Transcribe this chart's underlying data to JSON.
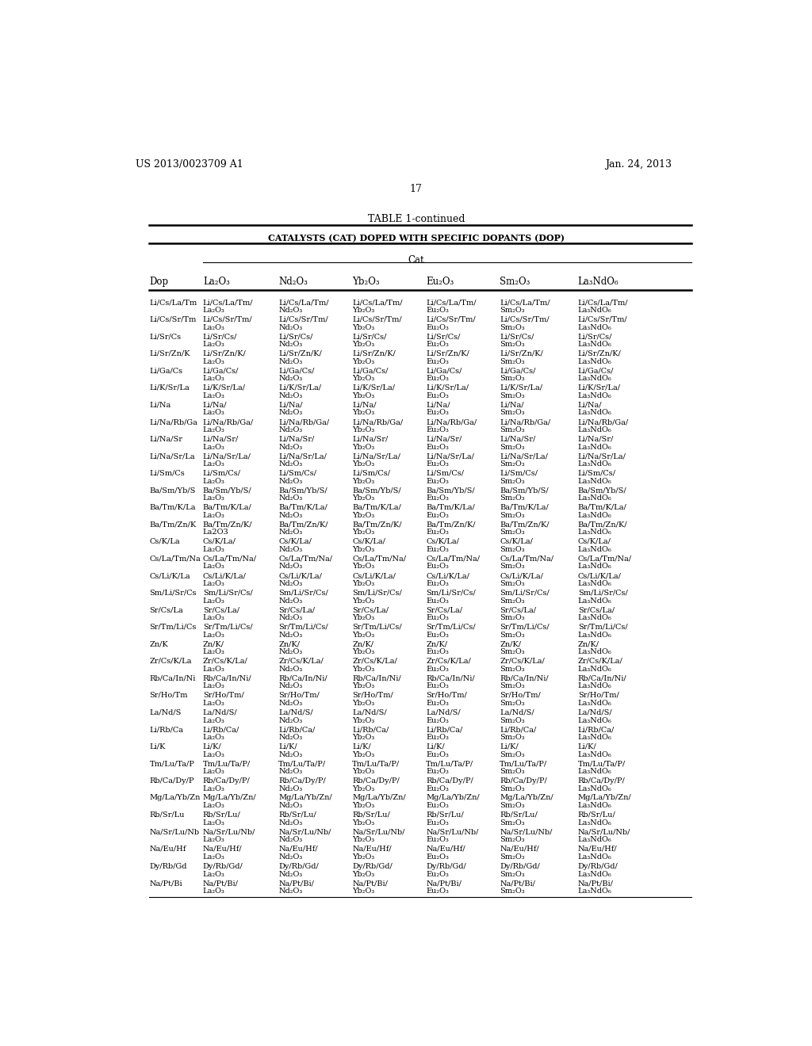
{
  "page_number": "17",
  "patent_number": "US 2013/0023709 A1",
  "patent_date": "Jan. 24, 2013",
  "table_title": "TABLE 1-continued",
  "table_subtitle": "CATALYSTS (CAT) DOPED WITH SPECIFIC DOPANTS (DOP)",
  "col_header_cat": "Cat",
  "col_headers_display": [
    "La₂O₃",
    "Nd₂O₃",
    "Yb₂O₃",
    "Eu₂O₃",
    "Sm₂O₃",
    "La₃NdO₆"
  ],
  "rows": [
    [
      "Li/Cs/La/Tm",
      "Li/Cs/La/Tm/",
      "La₂O₃",
      "Li/Cs/La/Tm/",
      "Nd₂O₃",
      "Li/Cs/La/Tm/",
      "Yb₂O₃",
      "Li/Cs/La/Tm/",
      "Eu₂O₃",
      "Li/Cs/La/Tm/",
      "Sm₂O₃",
      "Li/Cs/La/Tm/",
      "La₃NdO₆"
    ],
    [
      "Li/Cs/Sr/Tm",
      "Li/Cs/Sr/Tm/",
      "La₂O₃",
      "Li/Cs/Sr/Tm/",
      "Nd₂O₃",
      "Li/Cs/Sr/Tm/",
      "Yb₂O₃",
      "Li/Cs/Sr/Tm/",
      "Eu₂O₃",
      "Li/Cs/Sr/Tm/",
      "Sm₂O₃",
      "Li/Cs/Sr/Tm/",
      "La₃NdO₆"
    ],
    [
      "Li/Sr/Cs",
      "Li/Sr/Cs/",
      "La₂O₃",
      "Li/Sr/Cs/",
      "Nd₂O₃",
      "Li/Sr/Cs/",
      "Yb₂O₃",
      "Li/Sr/Cs/",
      "Eu₂O₃",
      "Li/Sr/Cs/",
      "Sm₂O₃",
      "Li/Sr/Cs/",
      "La₃NdO₆"
    ],
    [
      "Li/Sr/Zn/K",
      "Li/Sr/Zn/K/",
      "La₂O₃",
      "Li/Sr/Zn/K/",
      "Nd₂O₃",
      "Li/Sr/Zn/K/",
      "Yb₂O₃",
      "Li/Sr/Zn/K/",
      "Eu₂O₃",
      "Li/Sr/Zn/K/",
      "Sm₂O₃",
      "Li/Sr/Zn/K/",
      "La₃NdO₆"
    ],
    [
      "Li/Ga/Cs",
      "Li/Ga/Cs/",
      "La₂O₃",
      "Li/Ga/Cs/",
      "Nd₂O₃",
      "Li/Ga/Cs/",
      "Yb₂O₃",
      "Li/Ga/Cs/",
      "Eu₂O₃",
      "Li/Ga/Cs/",
      "Sm₂O₃",
      "Li/Ga/Cs/",
      "La₃NdO₆"
    ],
    [
      "Li/K/Sr/La",
      "Li/K/Sr/La/",
      "La₂O₃",
      "Li/K/Sr/La/",
      "Nd₂O₃",
      "Li/K/Sr/La/",
      "Yb₂O₃",
      "Li/K/Sr/La/",
      "Eu₂O₃",
      "Li/K/Sr/La/",
      "Sm₂O₃",
      "Li/K/Sr/La/",
      "La₃NdO₆"
    ],
    [
      "Li/Na",
      "Li/Na/",
      "La₂O₃",
      "Li/Na/",
      "Nd₂O₃",
      "Li/Na/",
      "Yb₂O₃",
      "Li/Na/",
      "Eu₂O₃",
      "Li/Na/",
      "Sm₂O₃",
      "Li/Na/",
      "La₃NdO₆"
    ],
    [
      "Li/Na/Rb/Ga",
      "Li/Na/Rb/Ga/",
      "La₂O₃",
      "Li/Na/Rb/Ga/",
      "Nd₂O₃",
      "Li/Na/Rb/Ga/",
      "Yb₂O₃",
      "Li/Na/Rb/Ga/",
      "Eu₂O₃",
      "Li/Na/Rb/Ga/",
      "Sm₂O₃",
      "Li/Na/Rb/Ga/",
      "La₃NdO₆"
    ],
    [
      "Li/Na/Sr",
      "Li/Na/Sr/",
      "La₂O₃",
      "Li/Na/Sr/",
      "Nd₂O₃",
      "Li/Na/Sr/",
      "Yb₂O₃",
      "Li/Na/Sr/",
      "Eu₂O₃",
      "Li/Na/Sr/",
      "Sm₂O₃",
      "Li/Na/Sr/",
      "La₃NdO₆"
    ],
    [
      "Li/Na/Sr/La",
      "Li/Na/Sr/La/",
      "La₂O₃",
      "Li/Na/Sr/La/",
      "Nd₂O₃",
      "Li/Na/Sr/La/",
      "Yb₂O₃",
      "Li/Na/Sr/La/",
      "Eu₂O₃",
      "Li/Na/Sr/La/",
      "Sm₂O₃",
      "Li/Na/Sr/La/",
      "La₃NdO₆"
    ],
    [
      "Li/Sm/Cs",
      "Li/Sm/Cs/",
      "La₂O₃",
      "Li/Sm/Cs/",
      "Nd₂O₃",
      "Li/Sm/Cs/",
      "Yb₂O₃",
      "Li/Sm/Cs/",
      "Eu₂O₃",
      "Li/Sm/Cs/",
      "Sm₂O₃",
      "Li/Sm/Cs/",
      "La₃NdO₆"
    ],
    [
      "Ba/Sm/Yb/S",
      "Ba/Sm/Yb/S/",
      "La₂O₃",
      "Ba/Sm/Yb/S/",
      "Nd₂O₃",
      "Ba/Sm/Yb/S/",
      "Yb₂O₃",
      "Ba/Sm/Yb/S/",
      "Eu₂O₃",
      "Ba/Sm/Yb/S/",
      "Sm₂O₃",
      "Ba/Sm/Yb/S/",
      "La₃NdO₆"
    ],
    [
      "Ba/Tm/K/La",
      "Ba/Tm/K/La/",
      "La₂O₃",
      "Ba/Tm/K/La/",
      "Nd₂O₃",
      "Ba/Tm/K/La/",
      "Yb₂O₃",
      "Ba/Tm/K/La/",
      "Eu₂O₃",
      "Ba/Tm/K/La/",
      "Sm₂O₃",
      "Ba/Tm/K/La/",
      "La₃NdO₆"
    ],
    [
      "Ba/Tm/Zn/K",
      "Ba/Tm/Zn/K/",
      "La2O3",
      "Ba/Tm/Zn/K/",
      "Nd₂O₃",
      "Ba/Tm/Zn/K/",
      "Yb₂O₃",
      "Ba/Tm/Zn/K/",
      "Eu₂O₃",
      "Ba/Tm/Zn/K/",
      "Sm₂O₃",
      "Ba/Tm/Zn/K/",
      "La₃NdO₆"
    ],
    [
      "Cs/K/La",
      "Cs/K/La/",
      "La₂O₃",
      "Cs/K/La/",
      "Nd₂O₃",
      "Cs/K/La/",
      "Yb₂O₃",
      "Cs/K/La/",
      "Eu₂O₃",
      "Cs/K/La/",
      "Sm₂O₃",
      "Cs/K/La/",
      "La₃NdO₆"
    ],
    [
      "Cs/La/Tm/Na",
      "Cs/La/Tm/Na/",
      "La₂O₃",
      "Cs/La/Tm/Na/",
      "Nd₂O₃",
      "Cs/La/Tm/Na/",
      "Yb₂O₃",
      "Cs/La/Tm/Na/",
      "Eu₂O₃",
      "Cs/La/Tm/Na/",
      "Sm₂O₃",
      "Cs/La/Tm/Na/",
      "La₃NdO₆"
    ],
    [
      "Cs/Li/K/La",
      "Cs/Li/K/La/",
      "La₂O₃",
      "Cs/Li/K/La/",
      "Nd₂O₃",
      "Cs/Li/K/La/",
      "Yb₂O₃",
      "Cs/Li/K/La/",
      "Eu₂O₃",
      "Cs/Li/K/La/",
      "Sm₂O₃",
      "Cs/Li/K/La/",
      "La₃NdO₆"
    ],
    [
      "Sm/Li/Sr/Cs",
      "Sm/Li/Sr/Cs/",
      "La₂O₃",
      "Sm/Li/Sr/Cs/",
      "Nd₂O₃",
      "Sm/Li/Sr/Cs/",
      "Yb₂O₃",
      "Sm/Li/Sr/Cs/",
      "Eu₂O₃",
      "Sm/Li/Sr/Cs/",
      "Sm₂O₃",
      "Sm/Li/Sr/Cs/",
      "La₃NdO₆"
    ],
    [
      "Sr/Cs/La",
      "Sr/Cs/La/",
      "La₂O₃",
      "Sr/Cs/La/",
      "Nd₂O₃",
      "Sr/Cs/La/",
      "Yb₂O₃",
      "Sr/Cs/La/",
      "Eu₂O₃",
      "Sr/Cs/La/",
      "Sm₂O₃",
      "Sr/Cs/La/",
      "La₃NdO₆"
    ],
    [
      "Sr/Tm/Li/Cs",
      "Sr/Tm/Li/Cs/",
      "La₂O₃",
      "Sr/Tm/Li/Cs/",
      "Nd₂O₃",
      "Sr/Tm/Li/Cs/",
      "Yb₂O₃",
      "Sr/Tm/Li/Cs/",
      "Eu₂O₃",
      "Sr/Tm/Li/Cs/",
      "Sm₂O₃",
      "Sr/Tm/Li/Cs/",
      "La₃NdO₆"
    ],
    [
      "Zn/K",
      "Zn/K/",
      "La₂O₃",
      "Zn/K/",
      "Nd₂O₃",
      "Zn/K/",
      "Yb₂O₃",
      "Zn/K/",
      "Eu₂O₃",
      "Zn/K/",
      "Sm₂O₃",
      "Zn/K/",
      "La₃NdO₆"
    ],
    [
      "Zr/Cs/K/La",
      "Zr/Cs/K/La/",
      "La₂O₃",
      "Zr/Cs/K/La/",
      "Nd₂O₃",
      "Zr/Cs/K/La/",
      "Yb₂O₃",
      "Zr/Cs/K/La/",
      "Eu₂O₃",
      "Zr/Cs/K/La/",
      "Sm₂O₃",
      "Zr/Cs/K/La/",
      "La₃NdO₆"
    ],
    [
      "Rb/Ca/In/Ni",
      "Rb/Ca/In/Ni/",
      "La₂O₃",
      "Rb/Ca/In/Ni/",
      "Nd₂O₃",
      "Rb/Ca/In/Ni/",
      "Yb₂O₃",
      "Rb/Ca/In/Ni/",
      "Eu₂O₃",
      "Rb/Ca/In/Ni/",
      "Sm₂O₃",
      "Rb/Ca/In/Ni/",
      "La₃NdO₆"
    ],
    [
      "Sr/Ho/Tm",
      "Sr/Ho/Tm/",
      "La₂O₃",
      "Sr/Ho/Tm/",
      "Nd₂O₃",
      "Sr/Ho/Tm/",
      "Yb₂O₃",
      "Sr/Ho/Tm/",
      "Eu₂O₃",
      "Sr/Ho/Tm/",
      "Sm₂O₃",
      "Sr/Ho/Tm/",
      "La₃NdO₆"
    ],
    [
      "La/Nd/S",
      "La/Nd/S/",
      "La₂O₃",
      "La/Nd/S/",
      "Nd₂O₃",
      "La/Nd/S/",
      "Yb₂O₃",
      "La/Nd/S/",
      "Eu₂O₃",
      "La/Nd/S/",
      "Sm₂O₃",
      "La/Nd/S/",
      "La₃NdO₆"
    ],
    [
      "Li/Rb/Ca",
      "Li/Rb/Ca/",
      "La₂O₃",
      "Li/Rb/Ca/",
      "Nd₂O₃",
      "Li/Rb/Ca/",
      "Yb₂O₃",
      "Li/Rb/Ca/",
      "Eu₂O₃",
      "Li/Rb/Ca/",
      "Sm₂O₃",
      "Li/Rb/Ca/",
      "La₃NdO₆"
    ],
    [
      "Li/K",
      "Li/K/",
      "La₂O₃",
      "Li/K/",
      "Nd₂O₃",
      "Li/K/",
      "Yb₂O₃",
      "Li/K/",
      "Eu₂O₃",
      "Li/K/",
      "Sm₂O₃",
      "Li/K/",
      "La₃NdO₆"
    ],
    [
      "Tm/Lu/Ta/P",
      "Tm/Lu/Ta/P/",
      "La₂O₃",
      "Tm/Lu/Ta/P/",
      "Nd₂O₃",
      "Tm/Lu/Ta/P/",
      "Yb₂O₃",
      "Tm/Lu/Ta/P/",
      "Eu₂O₃",
      "Tm/Lu/Ta/P/",
      "Sm₂O₃",
      "Tm/Lu/Ta/P/",
      "La₃NdO₆"
    ],
    [
      "Rb/Ca/Dy/P",
      "Rb/Ca/Dy/P/",
      "La₂O₃",
      "Rb/Ca/Dy/P/",
      "Nd₂O₃",
      "Rb/Ca/Dy/P/",
      "Yb₂O₃",
      "Rb/Ca/Dy/P/",
      "Eu₂O₃",
      "Rb/Ca/Dy/P/",
      "Sm₂O₃",
      "Rb/Ca/Dy/P/",
      "La₃NdO₆"
    ],
    [
      "Mg/La/Yb/Zn",
      "Mg/La/Yb/Zn/",
      "La₂O₃",
      "Mg/La/Yb/Zn/",
      "Nd₂O₃",
      "Mg/La/Yb/Zn/",
      "Yb₂O₃",
      "Mg/La/Yb/Zn/",
      "Eu₂O₃",
      "Mg/La/Yb/Zn/",
      "Sm₂O₃",
      "Mg/La/Yb/Zn/",
      "La₃NdO₆"
    ],
    [
      "Rb/Sr/Lu",
      "Rb/Sr/Lu/",
      "La₂O₃",
      "Rb/Sr/Lu/",
      "Nd₂O₃",
      "Rb/Sr/Lu/",
      "Yb₂O₃",
      "Rb/Sr/Lu/",
      "Eu₂O₃",
      "Rb/Sr/Lu/",
      "Sm₂O₃",
      "Rb/Sr/Lu/",
      "La₃NdO₆"
    ],
    [
      "Na/Sr/Lu/Nb",
      "Na/Sr/Lu/Nb/",
      "La₂O₃",
      "Na/Sr/Lu/Nb/",
      "Nd₂O₃",
      "Na/Sr/Lu/Nb/",
      "Yb₂O₃",
      "Na/Sr/Lu/Nb/",
      "Eu₂O₃",
      "Na/Sr/Lu/Nb/",
      "Sm₂O₃",
      "Na/Sr/Lu/Nb/",
      "La₃NdO₆"
    ],
    [
      "Na/Eu/Hf",
      "Na/Eu/Hf/",
      "La₂O₃",
      "Na/Eu/Hf/",
      "Nd₂O₃",
      "Na/Eu/Hf/",
      "Yb₂O₃",
      "Na/Eu/Hf/",
      "Eu₂O₃",
      "Na/Eu/Hf/",
      "Sm₂O₃",
      "Na/Eu/Hf/",
      "La₃NdO₆"
    ],
    [
      "Dy/Rb/Gd",
      "Dy/Rb/Gd/",
      "La₂O₃",
      "Dy/Rb/Gd/",
      "Nd₂O₃",
      "Dy/Rb/Gd/",
      "Yb₂O₃",
      "Dy/Rb/Gd/",
      "Eu₂O₃",
      "Dy/Rb/Gd/",
      "Sm₂O₃",
      "Dy/Rb/Gd/",
      "La₃NdO₆"
    ],
    [
      "Na/Pt/Bi",
      "Na/Pt/Bi/",
      "La₂O₃",
      "Na/Pt/Bi/",
      "Nd₂O₃",
      "Na/Pt/Bi/",
      "Yb₂O₃",
      "Na/Pt/Bi/",
      "Eu₂O₃",
      "Na/Pt/Bi/",
      "Sm₂O₃",
      "Na/Pt/Bi/",
      "La₃NdO₆"
    ]
  ],
  "bg_color": "#ffffff",
  "text_color": "#000000"
}
